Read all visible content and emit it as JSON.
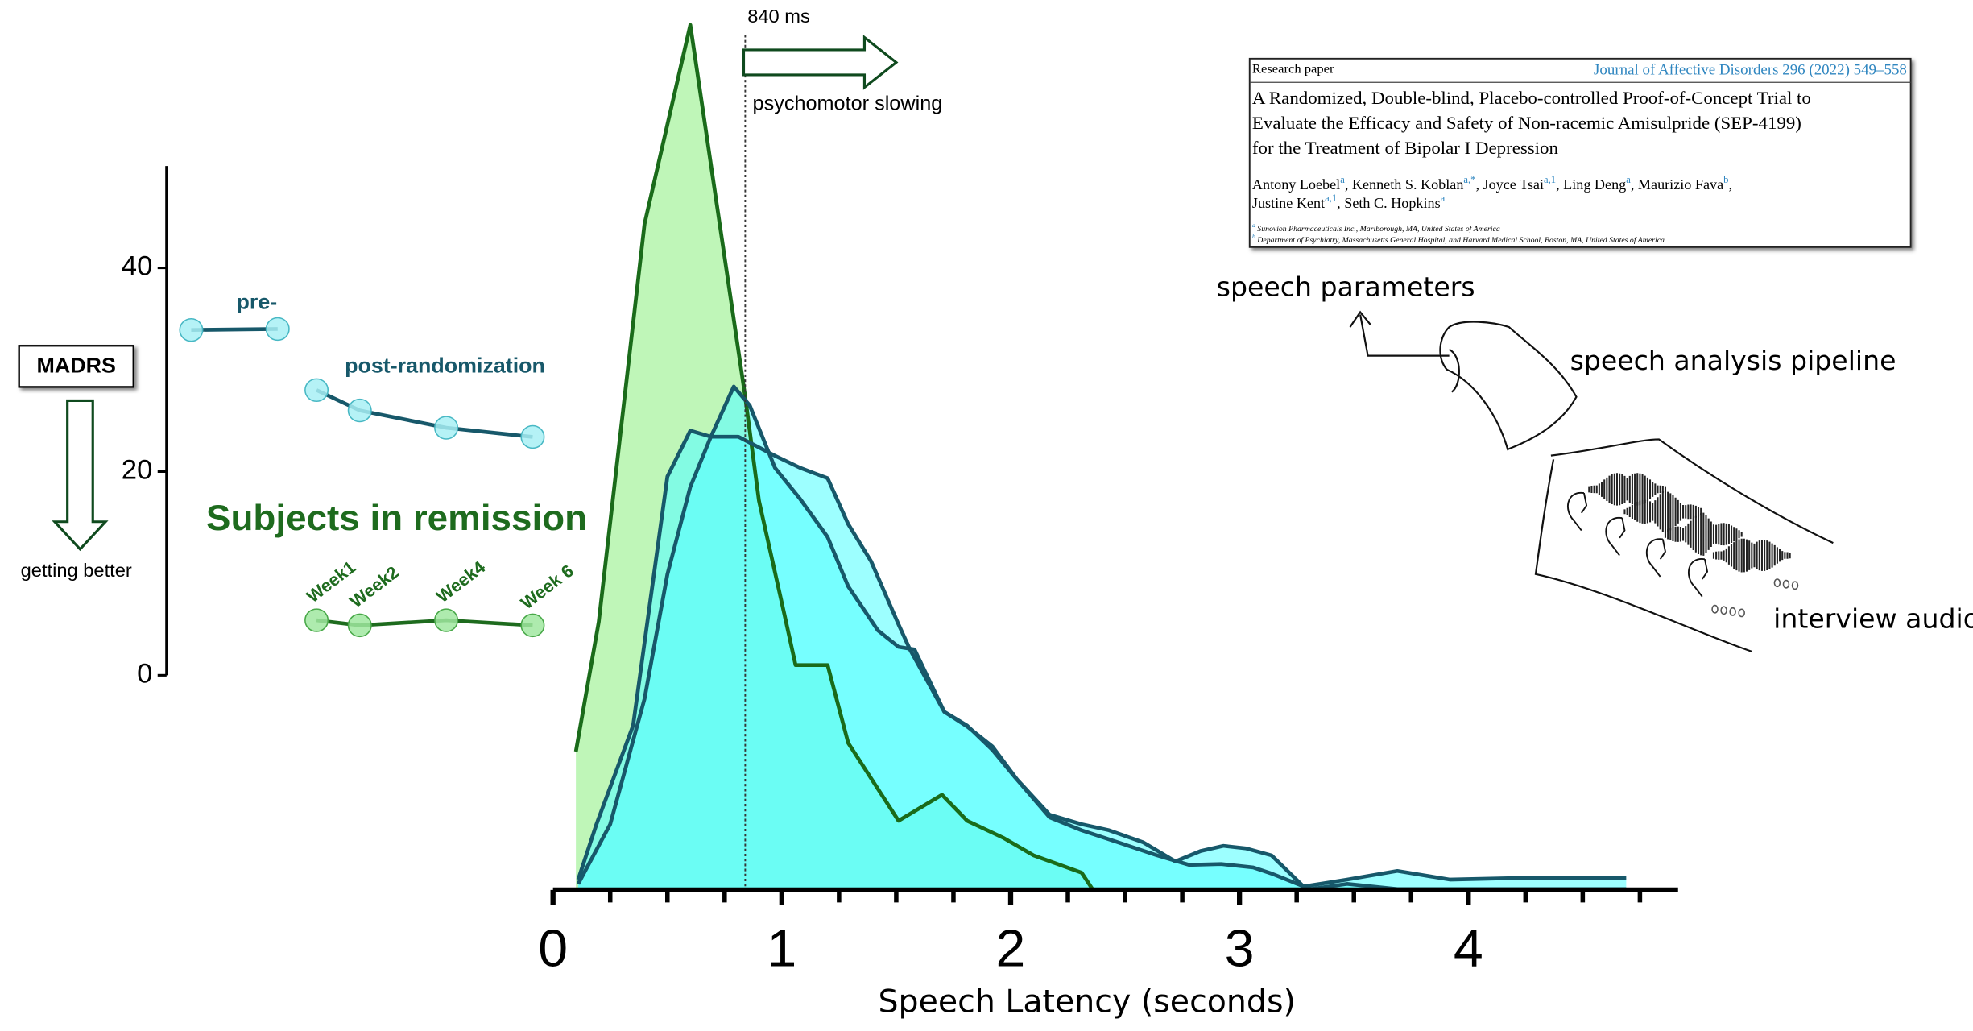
{
  "chart_data": [
    {
      "type": "area",
      "x_label": "Speech Latency (seconds)",
      "xlim": [
        0,
        4.9
      ],
      "xticks": [
        0,
        1,
        2,
        3,
        4
      ],
      "xminorticks": [
        0.25,
        0.5,
        0.75,
        1.25,
        1.5,
        1.75,
        2.25,
        2.5,
        2.75,
        3.25,
        3.5,
        3.75,
        4.25,
        4.5,
        4.75
      ],
      "ylim": [
        0,
        100
      ],
      "threshold": {
        "value": 0.84,
        "label": "840 ms",
        "note": "psychomotor slowing"
      },
      "series": [
        {
          "color": "#1a6b1a",
          "fill": "#b8f5b0",
          "x": [
            0.1,
            0.2,
            0.4,
            0.6,
            0.84,
            0.9,
            1.01,
            1.06,
            1.2,
            1.29,
            1.51,
            1.7,
            1.81,
            1.97,
            2.1,
            2.31,
            2.36,
            4.69
          ],
          "values": [
            16,
            31,
            77,
            100,
            57,
            45,
            32,
            26,
            26,
            17,
            8,
            11,
            8,
            6,
            4,
            2,
            0,
            0
          ]
        },
        {
          "color": "#17586a",
          "fill": "#5cffff",
          "x": [
            0.11,
            0.19,
            0.35,
            0.5,
            0.6,
            0.69,
            0.81,
            0.97,
            1.08,
            1.2,
            1.29,
            1.39,
            1.51,
            1.56,
            1.71,
            1.81,
            1.92,
            2.02,
            2.17,
            2.31,
            2.43,
            2.58,
            2.72,
            2.83,
            2.93,
            3.03,
            3.14,
            3.28,
            3.47,
            3.69,
            3.92,
            4.25,
            4.69
          ],
          "values": [
            1.2,
            7.6,
            19.0,
            47.8,
            53.1,
            52.4,
            52.4,
            50.2,
            48.8,
            47.6,
            42.3,
            38.0,
            30.7,
            27.8,
            20.6,
            19.0,
            16.2,
            13.0,
            8.7,
            7.6,
            6.9,
            5.5,
            3.3,
            4.5,
            5.1,
            4.8,
            4.0,
            0.4,
            1.2,
            2.2,
            1.2,
            1.4,
            1.4
          ]
        },
        {
          "color": "#17586a",
          "fill": "#5cffff",
          "x": [
            0.11,
            0.25,
            0.4,
            0.5,
            0.6,
            0.69,
            0.79,
            0.86,
            0.97,
            1.08,
            1.2,
            1.29,
            1.42,
            1.51,
            1.58,
            1.71,
            1.81,
            1.92,
            2.03,
            2.17,
            2.31,
            2.47,
            2.64,
            2.78,
            2.92,
            3.06,
            3.14,
            3.31,
            3.47,
            3.69,
            4.25,
            4.69
          ],
          "values": [
            0.7,
            7.6,
            22.1,
            36.5,
            46.6,
            52.4,
            58.2,
            56.0,
            48.8,
            45.2,
            40.8,
            35.1,
            30.0,
            28.1,
            27.8,
            20.6,
            18.9,
            16.6,
            12.7,
            8.4,
            6.9,
            5.5,
            4.0,
            2.9,
            3.0,
            2.6,
            1.9,
            0.1,
            0.7,
            0.1,
            0.1,
            0.1
          ]
        }
      ]
    },
    {
      "type": "line",
      "y_label": "MADRS",
      "y_note": "getting better",
      "xlim": [
        -2.5,
        6.5
      ],
      "ylim": [
        0,
        50
      ],
      "yticks": [
        0,
        20,
        40
      ],
      "series": [
        {
          "name": "pre-",
          "color": "#17586a",
          "marker": "#a8f0f4",
          "marker_edge": "#48b8c4",
          "x": [
            -1.9,
            0.1
          ],
          "values": [
            33.9,
            34.0
          ]
        },
        {
          "name": "post-randomization",
          "color": "#17586a",
          "marker": "#a8f0f4",
          "marker_edge": "#48b8c4",
          "x": [
            1,
            2,
            4,
            6
          ],
          "values": [
            28.0,
            26.0,
            24.3,
            23.4
          ]
        },
        {
          "name": "Subjects in remission",
          "color": "#1e6b1e",
          "marker": "#a0e8a0",
          "marker_edge": "#48a848",
          "x": [
            1,
            2,
            4,
            6
          ],
          "values": [
            5.4,
            4.9,
            5.4,
            4.9
          ],
          "x_labels": [
            "Week1",
            "Week2",
            "Week4",
            "Week 6"
          ]
        }
      ]
    }
  ],
  "paper": {
    "kind": "Research paper",
    "journal": "Journal of Affective Disorders 296 (2022) 549–558",
    "title_lines": [
      "A Randomized, Double-blind, Placebo-controlled Proof-of-Concept Trial to",
      "Evaluate the Efficacy and Safety of Non-racemic Amisulpride (SEP-4199)",
      "for the Treatment of Bipolar I Depression"
    ],
    "authors": [
      [
        {
          "text": "Antony Loebel"
        },
        {
          "sup": "a"
        },
        {
          "text": ", Kenneth S. Koblan"
        },
        {
          "sup": "a,*"
        },
        {
          "text": ", Joyce Tsai"
        },
        {
          "sup": "a,1"
        },
        {
          "text": ", Ling Deng"
        },
        {
          "sup": "a"
        },
        {
          "text": ", Maurizio Fava"
        },
        {
          "sup": "b"
        },
        {
          "text": ","
        }
      ],
      [
        {
          "text": "Justine Kent"
        },
        {
          "sup": "a,1"
        },
        {
          "text": ", Seth C. Hopkins"
        },
        {
          "sup": "a"
        }
      ]
    ],
    "affiliations": [
      [
        {
          "sup": "a"
        },
        {
          "text": " Sunovion Pharmaceuticals Inc., Marlborough, MA, United States of America"
        }
      ],
      [
        {
          "sup": "b"
        },
        {
          "text": " Department of Psychiatry, Massachusetts General Hospital, and Harvard Medical School, Boston, MA, United States of America"
        }
      ]
    ]
  },
  "sketch": {
    "output": "speech parameters",
    "pipeline": "speech analysis pipeline",
    "input": "interview audio"
  }
}
